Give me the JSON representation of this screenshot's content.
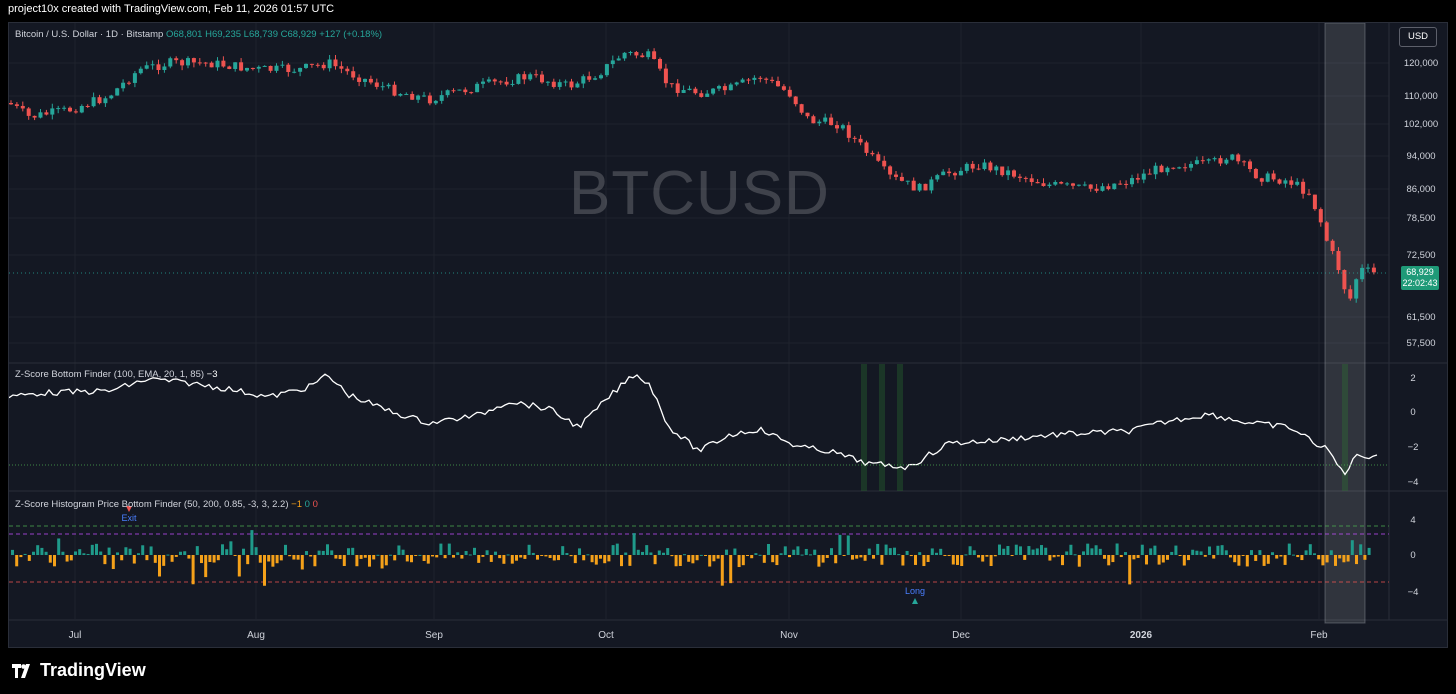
{
  "header": {
    "caption": "project10x created with TradingView.com, Feb 11, 2026 01:57 UTC"
  },
  "symbol": {
    "name": "Bitcoin / U.S. Dollar · 1D · Bitstamp",
    "open": "O68,801",
    "high": "H69,235",
    "low": "L68,739",
    "close": "C68,929",
    "change": "+127 (+0.18%)"
  },
  "watermark": "BTCUSD",
  "currency_button": "USD",
  "last_price": {
    "value": "68,929",
    "countdown": "22:02:43"
  },
  "price_axis": [
    "120,000",
    "110,000",
    "102,000",
    "94,000",
    "86,000",
    "78,500",
    "72,500",
    "61,500",
    "57,500"
  ],
  "indicator1": {
    "label": "Z-Score Bottom Finder (100, EMA, 20, 1, 85)",
    "value": "−3",
    "axis": [
      "2",
      "0",
      "−2",
      "−4"
    ]
  },
  "indicator2": {
    "label": "Z-Score Histogram Price Bottom Finder (50, 200, 0.85, -3, 3, 2.2)",
    "v1": "−1",
    "v2": "0",
    "v3": "0",
    "axis": [
      "4",
      "0",
      "−4"
    ],
    "exit_label": "Exit",
    "long_label": "Long"
  },
  "time_axis": [
    "Jul",
    "Aug",
    "Sep",
    "Oct",
    "Nov",
    "Dec",
    "2026",
    "Feb"
  ],
  "footer": {
    "brand": "TradingView"
  },
  "colors": {
    "up": "#26a69a",
    "down": "#ef5350",
    "background": "#141823",
    "grid": "#1e222d",
    "hist_up": "#1f9a8a",
    "hist_down": "#f5a11a"
  }
}
